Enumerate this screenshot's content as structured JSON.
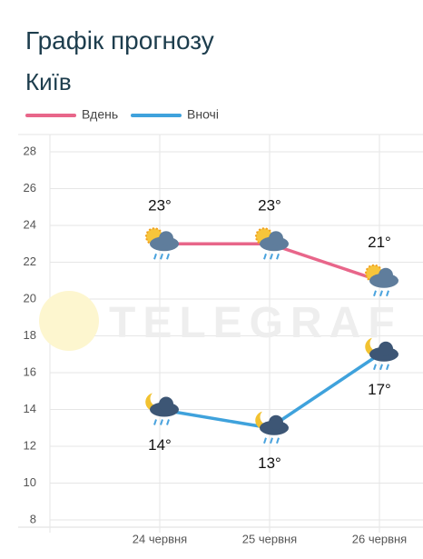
{
  "chart_data": {
    "type": "line",
    "title": "Графік прогнозу",
    "subtitle": "Київ",
    "watermark": "TELEGRAF",
    "categories": [
      null,
      "24 червня",
      "25 червня",
      "26 червня"
    ],
    "series": [
      {
        "name": "Вдень",
        "color": "#e8668a",
        "values": [
          null,
          23,
          23,
          21
        ],
        "value_labels": [
          null,
          "23°",
          "23°",
          "21°"
        ]
      },
      {
        "name": "Вночі",
        "color": "#3fa2dc",
        "values": [
          null,
          14,
          13,
          17
        ],
        "value_labels": [
          null,
          "14°",
          "13°",
          "17°"
        ]
      }
    ],
    "ylim": [
      8,
      28
    ],
    "yticks": [
      8,
      10,
      12,
      14,
      16,
      18,
      20,
      22,
      24,
      26,
      28
    ],
    "grid": true,
    "legend": "top-left"
  }
}
